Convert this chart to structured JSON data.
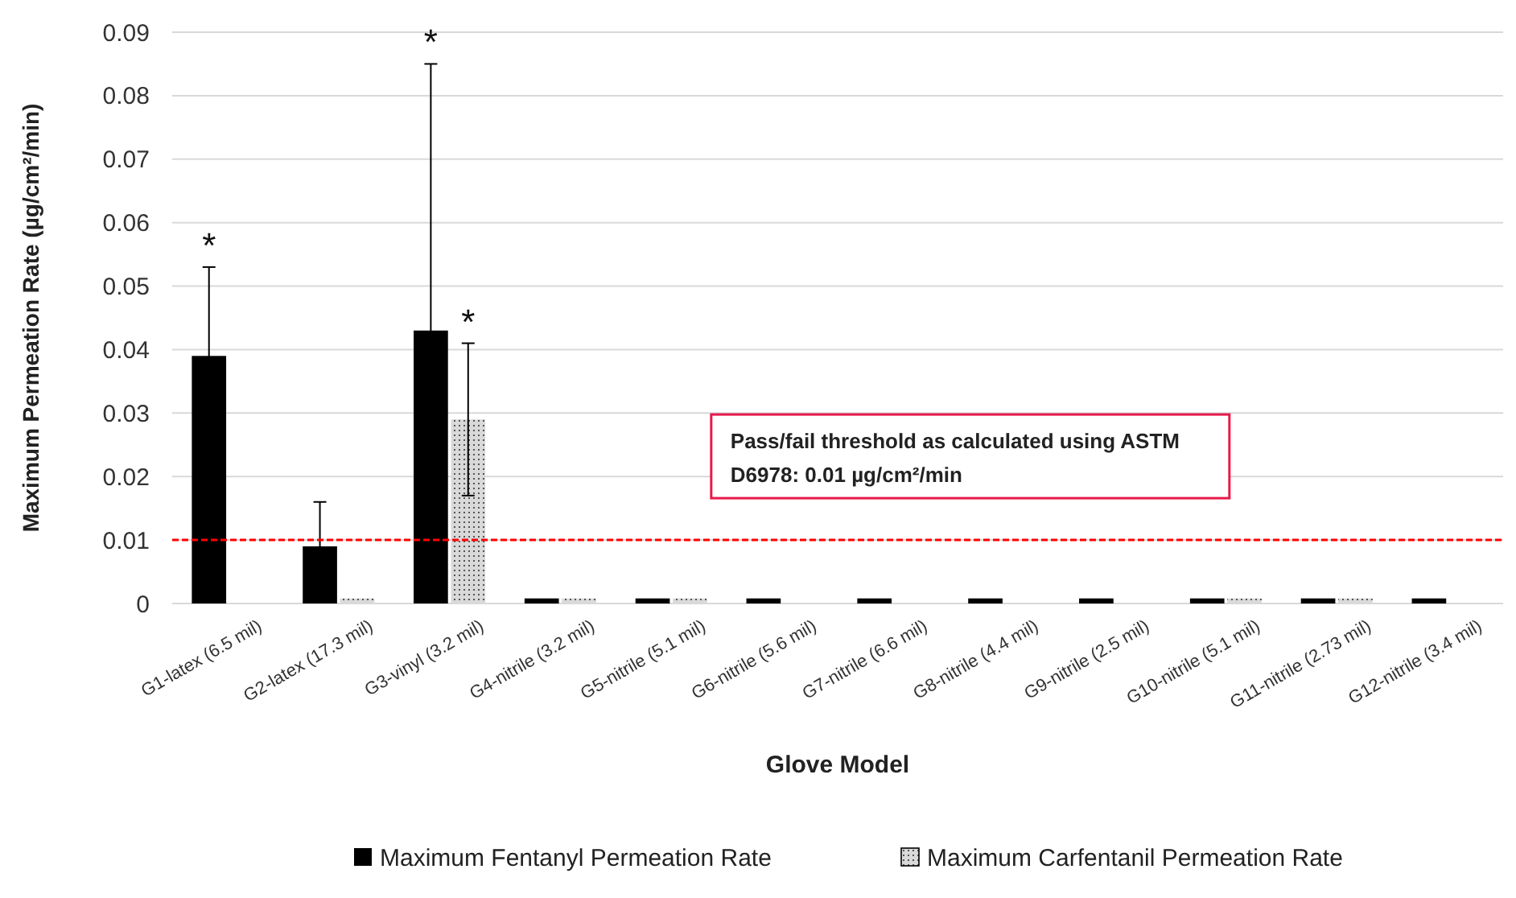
{
  "chart_data": {
    "type": "bar",
    "xlabel": "Glove Model",
    "ylabel": "Maximum Permeation Rate (µg/cm²/min)",
    "categories": [
      "G1-latex (6.5 mil)",
      "G2-latex (17.3 mil)",
      "G3-vinyl (3.2 mil)",
      "G4-nitrile (3.2 mil)",
      "G5-nitrile (5.1 mil)",
      "G6-nitrile (5.6 mil)",
      "G7-nitrile (6.6 mil)",
      "G8-nitrile (4.4 mil)",
      "G9-nitrile (2.5 mil)",
      "G10-nitrile (5.1 mil)",
      "G11-nitrile (2.73 mil)",
      "G12-nitrile (3.4 mil)"
    ],
    "series": [
      {
        "name": "Maximum Fentanyl Permeation Rate",
        "color": "#000000",
        "values": [
          0.039,
          0.009,
          0.043,
          0.0008,
          0.0008,
          0.0008,
          0.0008,
          0.0008,
          0.0008,
          0.0008,
          0.0008,
          0.0008
        ],
        "errors": [
          0.014,
          0.007,
          0.042,
          null,
          null,
          null,
          null,
          null,
          null,
          null,
          null,
          null
        ]
      },
      {
        "name": "Maximum Carfentanil Permeation Rate",
        "color": "#d9d9d9",
        "values": [
          null,
          0.0008,
          0.029,
          0.0008,
          0.0008,
          null,
          null,
          null,
          null,
          0.0008,
          0.0008,
          null
        ],
        "errors": [
          null,
          null,
          0.012,
          null,
          null,
          null,
          null,
          null,
          null,
          null,
          null,
          null
        ]
      }
    ],
    "ylim": [
      0,
      0.09
    ],
    "yticks": [
      {
        "value": 0,
        "label": "0"
      },
      0.01,
      0.02,
      0.03,
      0.04,
      0.05,
      0.06,
      0.07,
      0.08,
      0.09
    ],
    "grid": "y",
    "legend": "bottom",
    "ref_lines": [
      {
        "axis": "y",
        "value": 0.01,
        "label": "Pass/fail threshold as calculated using ASTM D6978: 0.01 µg/cm²/min",
        "color": "#ff0000",
        "line_style": "dashed"
      }
    ],
    "annotations": [
      {
        "text": "*",
        "x": "G1-latex (6.5 mil)",
        "y": 0.053
      },
      {
        "text": "*",
        "x": "G3-vinyl (3.2 mil)",
        "y": 0.085
      },
      "*"
    ]
  }
}
